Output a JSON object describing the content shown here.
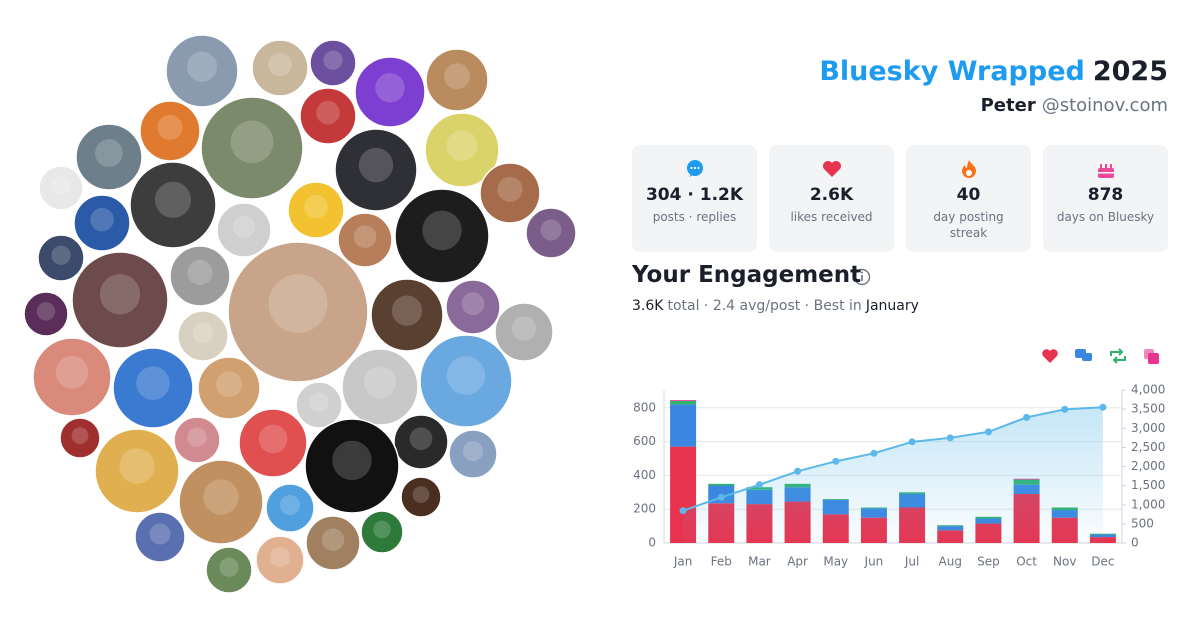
{
  "header": {
    "title": "Bluesky Wrapped",
    "year": "2025",
    "name": "Peter",
    "handle": "@stoinov.com"
  },
  "stats": [
    {
      "value": "304 · 1.2K",
      "label": "posts · replies"
    },
    {
      "value": "2.6K",
      "label": "likes received"
    },
    {
      "value": "40",
      "label": "day posting streak"
    },
    {
      "value": "878",
      "label": "days on Bluesky"
    }
  ],
  "engagement": {
    "title": "Your Engagement",
    "summary": [
      "3.6K",
      "total · 2.4 avg/post · Best in",
      "January"
    ]
  },
  "chart_data": {
    "type": "bar",
    "categories": [
      "Jan",
      "Feb",
      "Mar",
      "Apr",
      "May",
      "Jun",
      "Jul",
      "Aug",
      "Sep",
      "Oct",
      "Nov",
      "Dec"
    ],
    "series": [
      {
        "color": "#e8334f",
        "values": [
          570,
          235,
          230,
          245,
          170,
          150,
          210,
          75,
          115,
          290,
          150,
          35
        ]
      },
      {
        "color": "#3a86e0",
        "values": [
          250,
          105,
          85,
          85,
          85,
          55,
          80,
          25,
          30,
          55,
          45,
          15
        ]
      },
      {
        "color": "#2db36a",
        "values": [
          20,
          10,
          15,
          20,
          5,
          5,
          10,
          5,
          10,
          30,
          15,
          5
        ]
      },
      {
        "color": "#e8338f",
        "values": [
          5,
          0,
          0,
          0,
          0,
          0,
          0,
          0,
          0,
          5,
          0,
          0
        ]
      },
      {
        "type": "line",
        "axis": "y2",
        "color": "#5bb8e8",
        "values": [
          845,
          1195,
          1525,
          1875,
          2135,
          2345,
          2645,
          2750,
          2905,
          3285,
          3495,
          3550
        ]
      }
    ],
    "ylim": [
      0,
      905
    ],
    "yticks": [
      0,
      200,
      400,
      600,
      800
    ],
    "y2lim": [
      0,
      4000
    ],
    "y2ticks": [
      0,
      500,
      {
        "value": 1000,
        "label": "1,000"
      },
      {
        "value": 1500,
        "label": "1,500"
      },
      {
        "value": 2000,
        "label": "2,000"
      },
      {
        "value": 2500,
        "label": "2,500"
      },
      {
        "value": 3000,
        "label": "3,000"
      },
      {
        "value": 3500,
        "label": "3,500"
      },
      {
        "value": 4000,
        "label": "4,000"
      }
    ],
    "grid": true
  }
}
